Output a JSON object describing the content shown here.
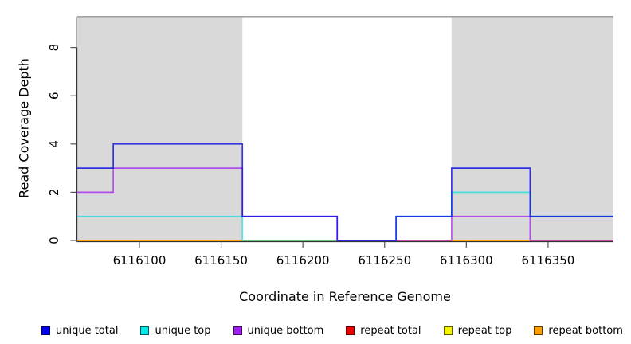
{
  "chart_data": {
    "type": "step-line",
    "title": "",
    "xlabel": "Coordinate in Reference Genome",
    "ylabel": "Read Coverage Depth",
    "xlim": [
      6116062,
      6116390
    ],
    "ylim": [
      0,
      9.3
    ],
    "x_ticks": [
      6116100,
      6116150,
      6116200,
      6116250,
      6116300,
      6116350
    ],
    "y_ticks": [
      0,
      2,
      4,
      6,
      8
    ],
    "grid": false,
    "shade_color": "#D9D9D9",
    "shaded_regions": [
      {
        "x0": 6116062,
        "x1": 6116163
      },
      {
        "x0": 6116291,
        "x1": 6116390
      }
    ],
    "reference_line": {
      "depth": 9.28,
      "color": "#969696"
    },
    "breakpoints": [
      6116062,
      6116084,
      6116163,
      6116221,
      6116257,
      6116291,
      6116339,
      6116390
    ],
    "series": [
      {
        "name": "repeat total",
        "color": "#E60000",
        "opacity": 1,
        "values": [
          0,
          0,
          0,
          0,
          0,
          0,
          0
        ]
      },
      {
        "name": "repeat top",
        "color": "#F0F000",
        "opacity": 1,
        "values": [
          0,
          0,
          0,
          0,
          0,
          0,
          0
        ]
      },
      {
        "name": "repeat bottom",
        "color": "#FF9E00",
        "opacity": 1,
        "values": [
          0,
          0,
          0,
          0,
          0,
          0,
          0
        ]
      },
      {
        "name": "unique top",
        "color": "#00DCE1",
        "opacity": 0.65,
        "values": [
          1,
          1,
          0,
          0,
          1,
          2,
          1
        ]
      },
      {
        "name": "unique bottom",
        "color": "#A020F0",
        "opacity": 0.75,
        "values": [
          2,
          3,
          1,
          0,
          0,
          1,
          0
        ]
      },
      {
        "name": "unique total",
        "color": "#1414E6",
        "opacity": 0.85,
        "values": [
          3,
          4,
          1,
          0,
          1,
          3,
          1
        ]
      }
    ],
    "legend": {
      "position": "bottom",
      "items": [
        {
          "label": "unique total",
          "color": "#0000EE"
        },
        {
          "label": "unique top",
          "color": "#00E8E8"
        },
        {
          "label": "unique bottom",
          "color": "#A020F0"
        },
        {
          "label": "repeat total",
          "color": "#EE0000"
        },
        {
          "label": "repeat top",
          "color": "#F2F200"
        },
        {
          "label": "repeat bottom",
          "color": "#FF9E00"
        }
      ]
    },
    "axis_colors": {
      "axis_line": "#333333",
      "tick_mark": "#565656",
      "tick_label": "#000000"
    }
  }
}
